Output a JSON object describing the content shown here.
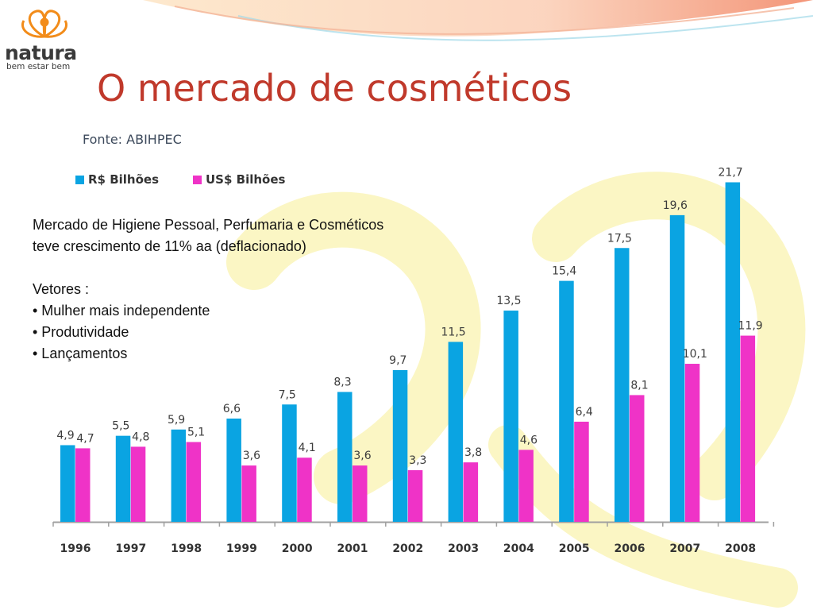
{
  "brand": {
    "name": "natura",
    "tagline": "bem estar bem"
  },
  "colors": {
    "title": "#c0392b",
    "rs": "#0aa4e2",
    "usd": "#ef33c7"
  },
  "slide": {
    "title": "O mercado de cosméticos",
    "source": "Fonte: ABIHPEC",
    "body": {
      "line1": "Mercado de Higiene Pessoal, Perfumaria e Cosméticos",
      "line2": "teve  crescimento de 11% aa (deflacionado)",
      "vetores_label": "Vetores :",
      "bullets": [
        "• Mulher mais independente",
        "• Produtividade",
        "• Lançamentos"
      ]
    }
  },
  "chart_data": {
    "type": "bar",
    "categories": [
      "1996",
      "1997",
      "1998",
      "1999",
      "2000",
      "2001",
      "2002",
      "2003",
      "2004",
      "2005",
      "2006",
      "2007",
      "2008"
    ],
    "series": [
      {
        "name": "R$ Bilhões",
        "values": [
          4.9,
          5.5,
          5.9,
          6.6,
          7.5,
          8.3,
          9.7,
          11.5,
          13.5,
          15.4,
          17.5,
          19.6,
          21.7
        ],
        "labels": [
          "4,9",
          "5,5",
          "5,9",
          "6,6",
          "7,5",
          "8,3",
          "9,7",
          "11,5",
          "13,5",
          "15,4",
          "17,5",
          "19,6",
          "21,7"
        ]
      },
      {
        "name": "US$ Bilhões",
        "values": [
          4.7,
          4.8,
          5.1,
          3.6,
          4.1,
          3.6,
          3.3,
          3.8,
          4.6,
          6.4,
          8.1,
          10.1,
          11.9
        ],
        "labels": [
          "4,7",
          "4,8",
          "5,1",
          "3,6",
          "4,1",
          "3,6",
          "3,3",
          "3,8",
          "4,6",
          "6,4",
          "8,1",
          "10,1",
          "11,9"
        ]
      }
    ],
    "ylim": [
      0,
      22
    ],
    "grid": false,
    "legend": "top-left"
  }
}
